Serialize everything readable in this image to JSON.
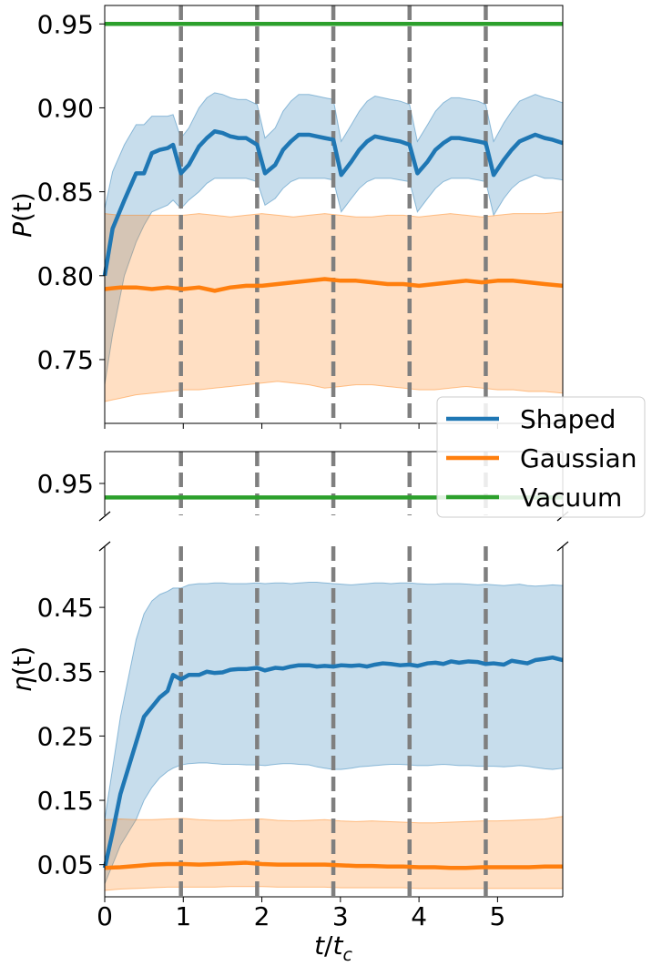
{
  "chart_data": [
    {
      "type": "line",
      "panel": "top",
      "ylabel": "P(t)",
      "xlim": [
        0,
        5.83
      ],
      "ylim": [
        0.712,
        0.961
      ],
      "yticks": [
        0.75,
        0.8,
        0.85,
        0.9,
        0.95
      ],
      "ytick_labels": [
        "0.75",
        "0.80",
        "0.85",
        "0.90",
        "0.95"
      ],
      "grid": false,
      "vlines": [
        0.97,
        1.94,
        2.91,
        3.88,
        4.85
      ],
      "series": [
        {
          "name": "Shaped",
          "color": "#1f77b4",
          "x": [
            0,
            0.1,
            0.25,
            0.4,
            0.5,
            0.6,
            0.7,
            0.8,
            0.87,
            0.97,
            1.07,
            1.2,
            1.3,
            1.4,
            1.5,
            1.6,
            1.7,
            1.8,
            1.94,
            2.04,
            2.17,
            2.27,
            2.37,
            2.47,
            2.6,
            2.7,
            2.8,
            2.91,
            3.01,
            3.14,
            3.24,
            3.34,
            3.44,
            3.54,
            3.64,
            3.76,
            3.88,
            3.98,
            4.11,
            4.21,
            4.31,
            4.41,
            4.51,
            4.63,
            4.75,
            4.85,
            4.95,
            5.08,
            5.18,
            5.28,
            5.38,
            5.48,
            5.6,
            5.7,
            5.83
          ],
          "values": [
            0.8,
            0.828,
            0.845,
            0.861,
            0.861,
            0.873,
            0.875,
            0.876,
            0.878,
            0.861,
            0.866,
            0.877,
            0.882,
            0.886,
            0.885,
            0.883,
            0.882,
            0.882,
            0.878,
            0.861,
            0.866,
            0.875,
            0.88,
            0.884,
            0.884,
            0.883,
            0.882,
            0.881,
            0.86,
            0.868,
            0.875,
            0.88,
            0.883,
            0.882,
            0.881,
            0.88,
            0.878,
            0.861,
            0.868,
            0.875,
            0.879,
            0.882,
            0.882,
            0.881,
            0.88,
            0.879,
            0.86,
            0.869,
            0.875,
            0.88,
            0.882,
            0.884,
            0.882,
            0.881,
            0.879
          ],
          "lower": [
            0.735,
            0.765,
            0.8,
            0.82,
            0.83,
            0.838,
            0.84,
            0.842,
            0.845,
            0.84,
            0.845,
            0.85,
            0.855,
            0.858,
            0.858,
            0.858,
            0.858,
            0.858,
            0.856,
            0.842,
            0.846,
            0.852,
            0.856,
            0.858,
            0.858,
            0.858,
            0.858,
            0.857,
            0.838,
            0.846,
            0.852,
            0.856,
            0.858,
            0.858,
            0.858,
            0.857,
            0.856,
            0.838,
            0.846,
            0.852,
            0.856,
            0.858,
            0.858,
            0.858,
            0.857,
            0.856,
            0.836,
            0.846,
            0.852,
            0.856,
            0.858,
            0.86,
            0.858,
            0.858,
            0.857
          ],
          "upper": [
            0.84,
            0.862,
            0.878,
            0.89,
            0.89,
            0.895,
            0.895,
            0.895,
            0.896,
            0.882,
            0.888,
            0.9,
            0.906,
            0.909,
            0.908,
            0.906,
            0.905,
            0.905,
            0.902,
            0.882,
            0.888,
            0.898,
            0.904,
            0.908,
            0.908,
            0.907,
            0.906,
            0.905,
            0.88,
            0.89,
            0.898,
            0.904,
            0.907,
            0.906,
            0.905,
            0.904,
            0.902,
            0.88,
            0.89,
            0.898,
            0.903,
            0.906,
            0.906,
            0.905,
            0.904,
            0.902,
            0.88,
            0.891,
            0.898,
            0.904,
            0.906,
            0.908,
            0.906,
            0.905,
            0.903
          ]
        },
        {
          "name": "Gaussian",
          "color": "#ff7f0e",
          "x": [
            0,
            0.2,
            0.4,
            0.6,
            0.8,
            1.0,
            1.2,
            1.4,
            1.6,
            1.8,
            2.0,
            2.2,
            2.4,
            2.6,
            2.8,
            3.0,
            3.2,
            3.4,
            3.6,
            3.8,
            4.0,
            4.2,
            4.4,
            4.6,
            4.8,
            5.0,
            5.2,
            5.4,
            5.6,
            5.83
          ],
          "values": [
            0.792,
            0.793,
            0.793,
            0.792,
            0.793,
            0.792,
            0.793,
            0.791,
            0.793,
            0.794,
            0.794,
            0.795,
            0.796,
            0.797,
            0.798,
            0.797,
            0.797,
            0.796,
            0.795,
            0.795,
            0.794,
            0.795,
            0.796,
            0.797,
            0.796,
            0.797,
            0.797,
            0.796,
            0.795,
            0.794
          ],
          "lower": [
            0.725,
            0.727,
            0.729,
            0.73,
            0.731,
            0.732,
            0.732,
            0.733,
            0.734,
            0.735,
            0.736,
            0.737,
            0.736,
            0.735,
            0.733,
            0.734,
            0.735,
            0.735,
            0.734,
            0.733,
            0.732,
            0.732,
            0.733,
            0.734,
            0.733,
            0.732,
            0.732,
            0.731,
            0.731,
            0.73
          ],
          "upper": [
            0.837,
            0.836,
            0.836,
            0.836,
            0.836,
            0.836,
            0.837,
            0.836,
            0.835,
            0.836,
            0.837,
            0.836,
            0.835,
            0.836,
            0.837,
            0.836,
            0.835,
            0.835,
            0.836,
            0.836,
            0.835,
            0.836,
            0.837,
            0.836,
            0.835,
            0.836,
            0.837,
            0.837,
            0.837,
            0.838
          ]
        },
        {
          "name": "Vacuum",
          "color": "#2ca02c",
          "x": [
            0,
            5.83
          ],
          "values": [
            0.95,
            0.95
          ]
        }
      ]
    },
    {
      "type": "line",
      "panel": "bottom",
      "ylabel": "η(t)",
      "xlabel": "t/t_c",
      "xlim": [
        0,
        5.83
      ],
      "ylim_upper": [
        0.925,
        0.975
      ],
      "ylim": [
        0.0,
        0.545
      ],
      "yticks_upper": [
        0.95
      ],
      "ytick_labels_upper": [
        "0.95"
      ],
      "yticks": [
        0.05,
        0.15,
        0.25,
        0.35,
        0.45
      ],
      "ytick_labels": [
        "0.05",
        "0.15",
        "0.25",
        "0.35",
        "0.45"
      ],
      "xticks": [
        0,
        1,
        2,
        3,
        4,
        5
      ],
      "xtick_labels": [
        "0",
        "1",
        "2",
        "3",
        "4",
        "5"
      ],
      "grid": false,
      "broken_axis": true,
      "vlines": [
        0.97,
        1.94,
        2.91,
        3.88,
        4.85
      ],
      "series": [
        {
          "name": "Shaped",
          "color": "#1f77b4",
          "x": [
            0,
            0.1,
            0.2,
            0.3,
            0.4,
            0.5,
            0.6,
            0.7,
            0.8,
            0.87,
            0.97,
            1.07,
            1.2,
            1.3,
            1.4,
            1.5,
            1.6,
            1.7,
            1.8,
            1.94,
            2.04,
            2.17,
            2.27,
            2.37,
            2.47,
            2.6,
            2.7,
            2.8,
            2.91,
            3.01,
            3.14,
            3.24,
            3.34,
            3.44,
            3.54,
            3.64,
            3.76,
            3.88,
            3.98,
            4.11,
            4.21,
            4.31,
            4.41,
            4.51,
            4.63,
            4.75,
            4.85,
            4.95,
            5.08,
            5.18,
            5.28,
            5.38,
            5.48,
            5.6,
            5.7,
            5.83
          ],
          "values": [
            0.045,
            0.1,
            0.16,
            0.2,
            0.24,
            0.28,
            0.295,
            0.31,
            0.32,
            0.345,
            0.338,
            0.345,
            0.345,
            0.35,
            0.348,
            0.349,
            0.353,
            0.354,
            0.354,
            0.356,
            0.352,
            0.356,
            0.355,
            0.358,
            0.36,
            0.36,
            0.358,
            0.359,
            0.358,
            0.36,
            0.359,
            0.36,
            0.358,
            0.361,
            0.363,
            0.362,
            0.36,
            0.361,
            0.359,
            0.363,
            0.364,
            0.362,
            0.366,
            0.364,
            0.366,
            0.365,
            0.362,
            0.363,
            0.361,
            0.367,
            0.365,
            0.363,
            0.368,
            0.37,
            0.372,
            0.368
          ],
          "lower": [
            0.02,
            0.05,
            0.08,
            0.1,
            0.12,
            0.15,
            0.17,
            0.185,
            0.195,
            0.2,
            0.205,
            0.207,
            0.208,
            0.208,
            0.207,
            0.206,
            0.206,
            0.206,
            0.205,
            0.205,
            0.204,
            0.206,
            0.207,
            0.207,
            0.206,
            0.205,
            0.202,
            0.2,
            0.198,
            0.198,
            0.2,
            0.202,
            0.203,
            0.204,
            0.205,
            0.206,
            0.206,
            0.205,
            0.204,
            0.204,
            0.205,
            0.206,
            0.205,
            0.204,
            0.204,
            0.203,
            0.203,
            0.203,
            0.202,
            0.203,
            0.204,
            0.203,
            0.201,
            0.199,
            0.198,
            0.2
          ],
          "upper": [
            0.12,
            0.2,
            0.28,
            0.34,
            0.4,
            0.44,
            0.46,
            0.47,
            0.475,
            0.48,
            0.48,
            0.485,
            0.487,
            0.487,
            0.488,
            0.488,
            0.487,
            0.487,
            0.487,
            0.488,
            0.487,
            0.488,
            0.488,
            0.487,
            0.488,
            0.489,
            0.489,
            0.488,
            0.487,
            0.486,
            0.485,
            0.486,
            0.487,
            0.488,
            0.488,
            0.487,
            0.488,
            0.488,
            0.487,
            0.486,
            0.486,
            0.487,
            0.487,
            0.487,
            0.486,
            0.485,
            0.486,
            0.485,
            0.484,
            0.485,
            0.486,
            0.484,
            0.483,
            0.484,
            0.485,
            0.484
          ]
        },
        {
          "name": "Gaussian",
          "color": "#ff7f0e",
          "x": [
            0,
            0.2,
            0.4,
            0.6,
            0.8,
            1.0,
            1.2,
            1.4,
            1.6,
            1.8,
            2.0,
            2.2,
            2.4,
            2.6,
            2.8,
            3.0,
            3.2,
            3.4,
            3.6,
            3.8,
            4.0,
            4.2,
            4.4,
            4.6,
            4.8,
            5.0,
            5.2,
            5.4,
            5.6,
            5.83
          ],
          "values": [
            0.045,
            0.046,
            0.048,
            0.05,
            0.051,
            0.051,
            0.05,
            0.051,
            0.052,
            0.053,
            0.051,
            0.05,
            0.05,
            0.05,
            0.05,
            0.049,
            0.048,
            0.048,
            0.047,
            0.047,
            0.046,
            0.046,
            0.045,
            0.045,
            0.046,
            0.046,
            0.046,
            0.046,
            0.047,
            0.047
          ],
          "lower": [
            0.01,
            0.012,
            0.013,
            0.014,
            0.015,
            0.015,
            0.015,
            0.015,
            0.016,
            0.016,
            0.016,
            0.015,
            0.015,
            0.015,
            0.015,
            0.014,
            0.014,
            0.014,
            0.014,
            0.014,
            0.013,
            0.013,
            0.013,
            0.013,
            0.013,
            0.013,
            0.013,
            0.013,
            0.013,
            0.013
          ],
          "upper": [
            0.12,
            0.121,
            0.12,
            0.12,
            0.121,
            0.122,
            0.12,
            0.119,
            0.119,
            0.12,
            0.121,
            0.119,
            0.118,
            0.119,
            0.12,
            0.118,
            0.117,
            0.118,
            0.117,
            0.116,
            0.115,
            0.115,
            0.116,
            0.117,
            0.118,
            0.118,
            0.119,
            0.12,
            0.121,
            0.125
          ]
        },
        {
          "name": "Vacuum",
          "color": "#2ca02c",
          "x": [
            0,
            5.83
          ],
          "values": [
            0.939,
            0.939
          ],
          "axis": "upper"
        }
      ]
    }
  ],
  "legend": {
    "placement": "right-middle",
    "items": [
      {
        "label": "Shaped",
        "color": "#1f77b4"
      },
      {
        "label": "Gaussian",
        "color": "#ff7f0e"
      },
      {
        "label": "Vacuum",
        "color": "#2ca02c"
      }
    ]
  },
  "vline_color": "#7f7f7f",
  "labels": {
    "top_ylabel_main": "P",
    "top_ylabel_arg": "(t)",
    "bottom_ylabel_main": "η",
    "bottom_ylabel_arg": "(t)",
    "xlabel_t": "t",
    "xlabel_slash": "/",
    "xlabel_tc": "t",
    "xlabel_sub": "c"
  }
}
